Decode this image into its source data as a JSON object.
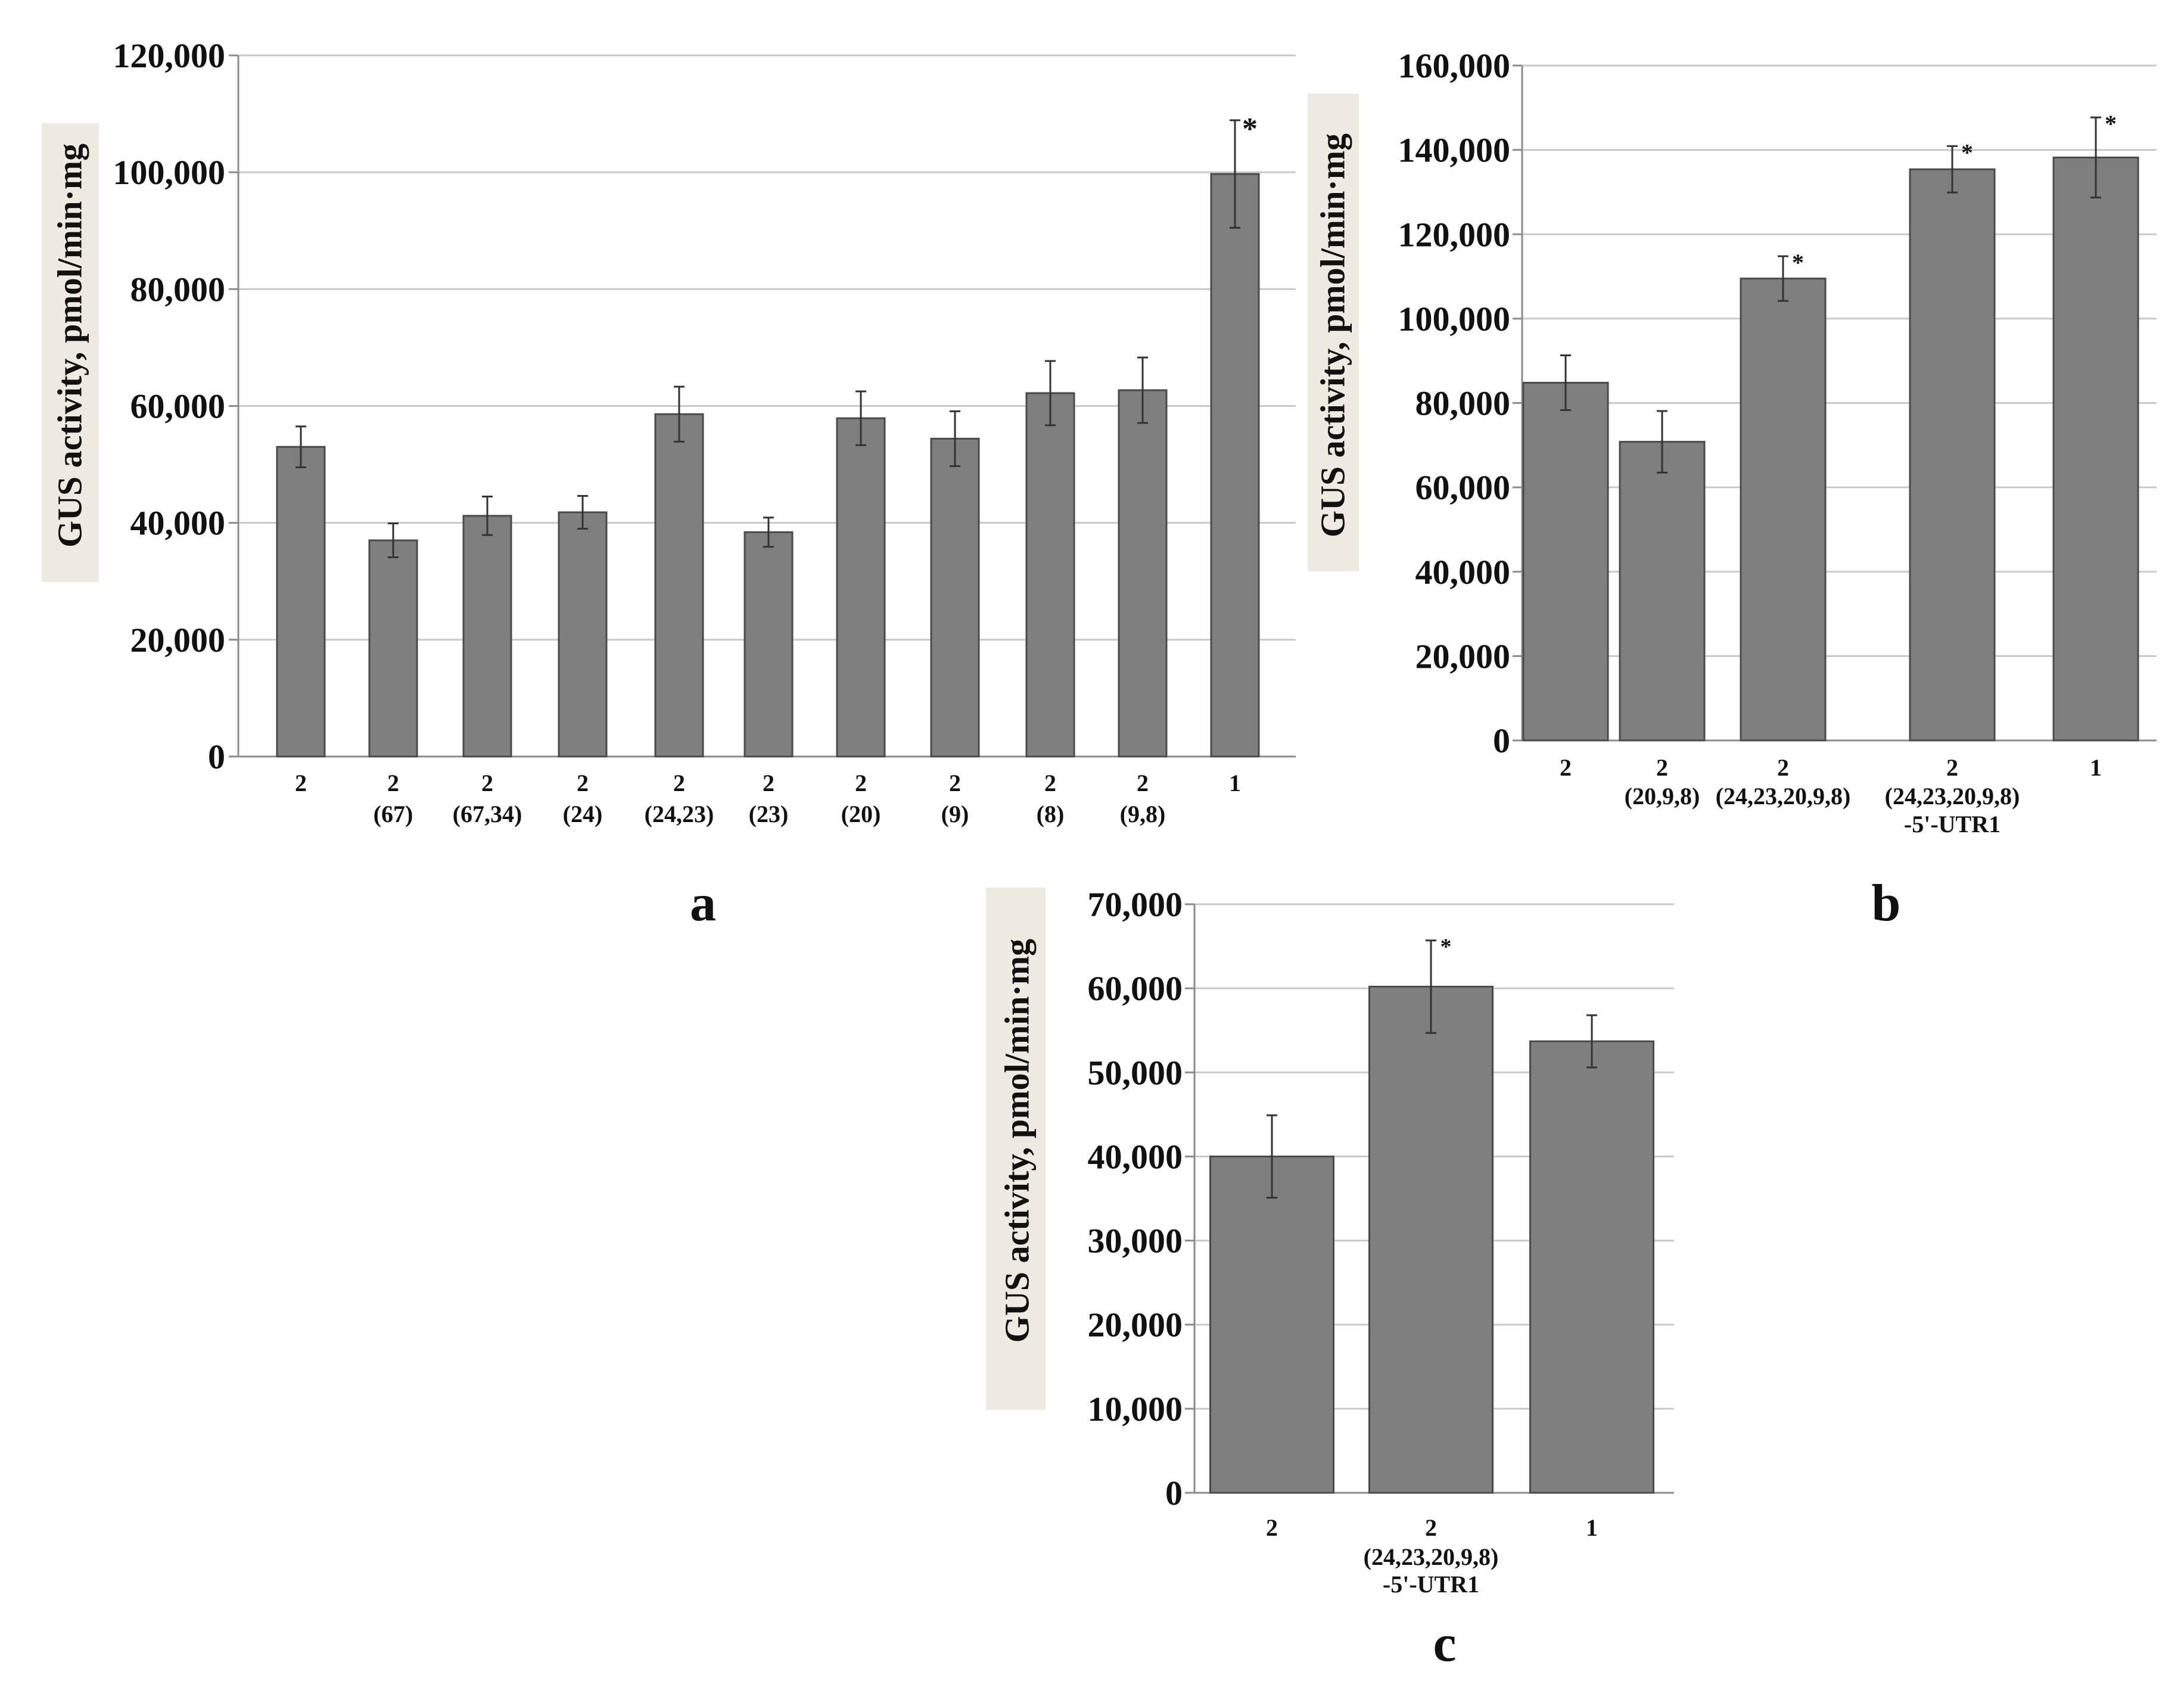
{
  "colors": {
    "bar_fill": "#7f7f7f",
    "bar_stroke": "#4a4a4a",
    "grid": "#c9c9c9",
    "axis": "#8c8c8c",
    "error_bar": "#333333",
    "ylabel_bg": "#eeeae0",
    "text": "#111111"
  },
  "chart_data": [
    {
      "panel_label": "a",
      "type": "bar",
      "ylabel": "GUS activity, pmol/min·mg",
      "ylim": [
        0,
        120000
      ],
      "yticks": [
        "0",
        "20,000",
        "40,000",
        "60,000",
        "80,000",
        "100,000",
        "120,000"
      ],
      "grid": true,
      "categories": [
        {
          "line1": "2",
          "line2": ""
        },
        {
          "line1": "2",
          "line2": "(67)"
        },
        {
          "line1": "2",
          "line2": "(67,34)"
        },
        {
          "line1": "2",
          "line2": "(24)"
        },
        {
          "line1": "2",
          "line2": "(24,23)"
        },
        {
          "line1": "2",
          "line2": "(23)"
        },
        {
          "line1": "2",
          "line2": "(20)"
        },
        {
          "line1": "2",
          "line2": "(9)"
        },
        {
          "line1": "2",
          "line2": "(8)"
        },
        {
          "line1": "2",
          "line2": "(9,8)"
        },
        {
          "line1": "1",
          "line2": ""
        }
      ],
      "values": [
        53000,
        37000,
        41200,
        41800,
        58600,
        38400,
        57900,
        54400,
        62200,
        62700,
        99700
      ],
      "errors": [
        3500,
        2900,
        3300,
        2800,
        4700,
        2500,
        4600,
        4700,
        5500,
        5600,
        9200
      ],
      "significance": [
        "",
        "",
        "",
        "",
        "",
        "",
        "",
        "",
        "",
        "",
        "*"
      ]
    },
    {
      "panel_label": "b",
      "type": "bar",
      "ylabel": "GUS activity, pmol/min·mg",
      "ylim": [
        0,
        160000
      ],
      "yticks": [
        "0",
        "20,000",
        "40,000",
        "60,000",
        "80,000",
        "100,000",
        "120,000",
        "140,000",
        "160,000"
      ],
      "grid": true,
      "categories": [
        {
          "line1": "2",
          "line2": "",
          "line3": ""
        },
        {
          "line1": "2",
          "line2": "(20,9,8)",
          "line3": ""
        },
        {
          "line1": "2",
          "line2": "(24,23,20,9,8)",
          "line3": ""
        },
        {
          "line1": "2",
          "line2": "(24,23,20,9,8)",
          "line3": "-5'-UTR1"
        },
        {
          "line1": "1",
          "line2": "",
          "line3": ""
        }
      ],
      "values": [
        84800,
        70800,
        109500,
        135400,
        138200
      ],
      "errors": [
        6500,
        7300,
        5300,
        5500,
        9500
      ],
      "significance": [
        "",
        "",
        "*",
        "*",
        "*"
      ]
    },
    {
      "panel_label": "c",
      "type": "bar",
      "ylabel": "GUS activity, pmol/min·mg",
      "ylim": [
        0,
        70000
      ],
      "yticks": [
        "0",
        "10,000",
        "20,000",
        "30,000",
        "40,000",
        "50,000",
        "60,000",
        "70,000"
      ],
      "grid": true,
      "categories": [
        {
          "line1": "2",
          "line2": "",
          "line3": ""
        },
        {
          "line1": "2",
          "line2": "(24,23,20,9,8)",
          "line3": "-5'-UTR1"
        },
        {
          "line1": "1",
          "line2": "",
          "line3": ""
        }
      ],
      "values": [
        40000,
        60200,
        53700
      ],
      "errors": [
        4900,
        5500,
        3100
      ],
      "significance": [
        "",
        "*",
        ""
      ]
    }
  ]
}
